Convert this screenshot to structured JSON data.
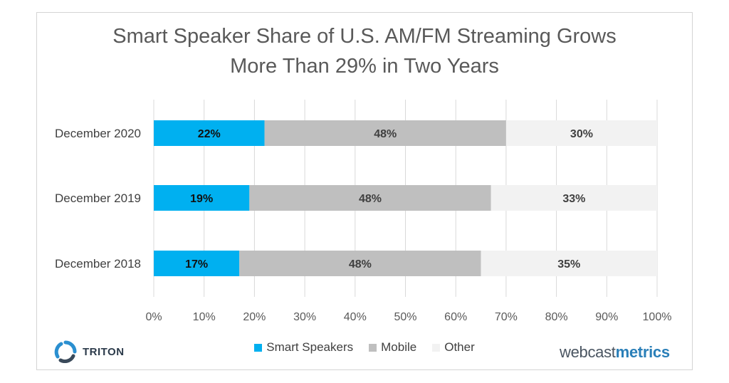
{
  "title_lines": [
    "Smart Speaker Share of U.S. AM/FM Streaming Grows",
    "More Than 29% in Two Years"
  ],
  "brand_left": "TRITON",
  "brand_right_prefix": "webcast",
  "brand_right_suffix": "metrics",
  "colors": {
    "smart_speakers": "#00b0f0",
    "mobile": "#bfbfbf",
    "other": "#f2f2f2",
    "grid": "#d9d9d9"
  },
  "chart_data": {
    "type": "bar",
    "orientation": "horizontal",
    "stacked": true,
    "categories": [
      "December 2020",
      "December 2019",
      "December 2018"
    ],
    "series": [
      {
        "name": "Smart Speakers",
        "values": [
          22,
          19,
          17
        ],
        "labels": [
          "22%",
          "19%",
          "17%"
        ],
        "color": "#00b0f0"
      },
      {
        "name": "Mobile",
        "values": [
          48,
          48,
          48
        ],
        "labels": [
          "48%",
          "48%",
          "48%"
        ],
        "color": "#bfbfbf"
      },
      {
        "name": "Other",
        "values": [
          30,
          33,
          35
        ],
        "labels": [
          "30%",
          "33%",
          "35%"
        ],
        "color": "#f2f2f2"
      }
    ],
    "xlim": [
      0,
      100
    ],
    "x_ticks": [
      "0%",
      "10%",
      "20%",
      "30%",
      "40%",
      "50%",
      "60%",
      "70%",
      "80%",
      "90%",
      "100%"
    ],
    "grid": true,
    "legend_position": "bottom"
  }
}
